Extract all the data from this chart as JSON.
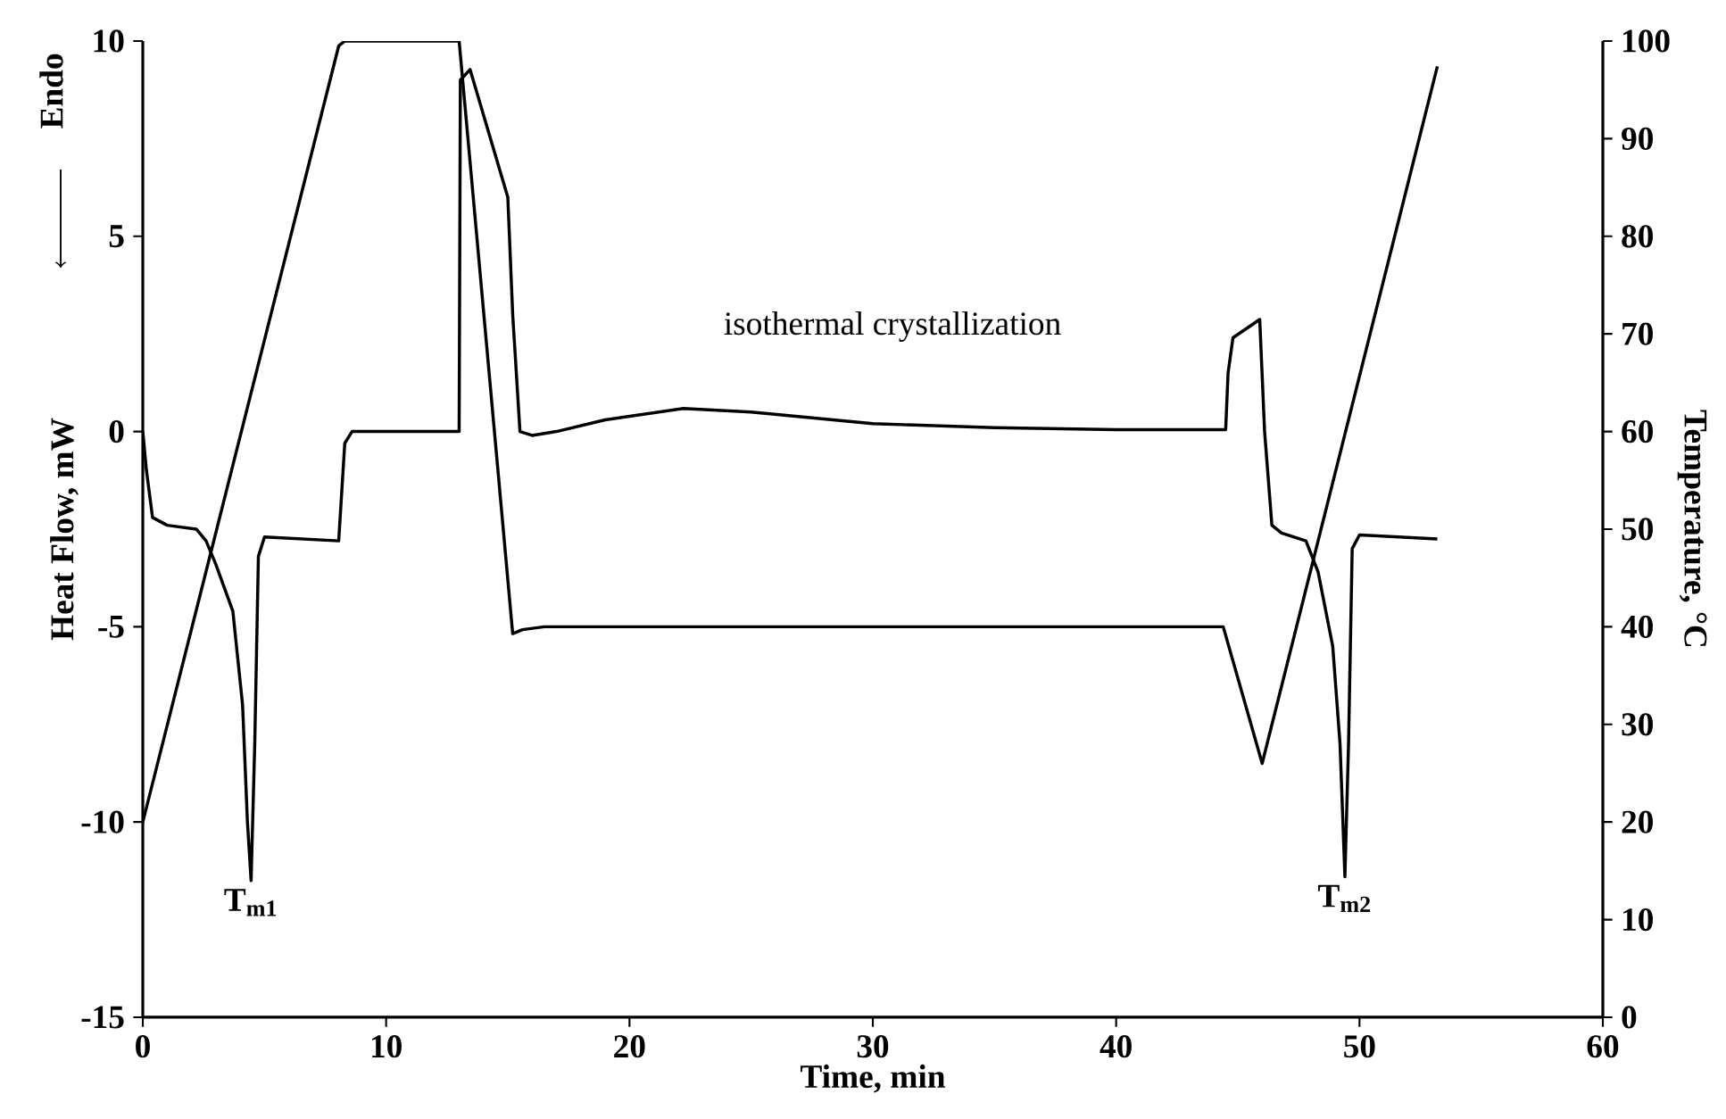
{
  "chart_data": {
    "type": "line",
    "xlabel": "Time, min",
    "ylabel": "Heat Flow, mW",
    "y2label": "Temperature, °C",
    "xlim": [
      0,
      60
    ],
    "xticks": [
      0,
      10,
      20,
      30,
      40,
      50,
      60
    ],
    "ylim": [
      -15,
      10
    ],
    "yticks": [
      -15,
      -10,
      -5,
      0,
      5,
      10
    ],
    "y2lim": [
      0,
      100
    ],
    "y2ticks": [
      0,
      10,
      20,
      30,
      40,
      50,
      60,
      70,
      80,
      90,
      100
    ],
    "annotations": [
      "Endo",
      "isothermal crystallization",
      {
        "text": "T$_{m1}$",
        "x": 4.45,
        "y": -11.5
      },
      {
        "text": "T$_{m2}$",
        "x": 49.4,
        "y": -11.4
      }
    ],
    "series": [
      {
        "color": "#000000",
        "x": [
          0,
          0.15,
          0.4,
          1.0,
          2.2,
          2.6,
          3.0,
          3.7,
          4.1,
          4.3,
          4.45,
          4.6,
          4.75,
          5.0,
          8.05,
          8.3,
          8.6,
          10,
          13.0,
          13.05,
          13.45,
          15.0,
          15.2,
          15.5,
          16.0,
          17,
          19,
          22.2,
          25,
          30,
          35,
          40,
          44.5,
          44.6,
          44.8,
          45.9,
          46.1,
          46.4,
          46.8,
          47.8,
          48.3,
          48.9,
          49.2,
          49.4,
          49.55,
          49.7,
          50.0,
          53.2
        ],
        "values": [
          0,
          -1,
          -2.2,
          -2.4,
          -2.5,
          -2.8,
          -3.4,
          -4.6,
          -7,
          -10,
          -11.5,
          -8,
          -3.2,
          -2.7,
          -2.8,
          -0.3,
          0,
          0,
          0,
          9.0,
          9.27,
          6.0,
          3,
          0,
          -0.1,
          0,
          0.3,
          0.59,
          0.5,
          0.2,
          0.1,
          0.05,
          0.05,
          1.5,
          2.4,
          2.87,
          0,
          -2.4,
          -2.6,
          -2.8,
          -3.6,
          -5.5,
          -8,
          -11.4,
          -8,
          -3,
          -2.65,
          -2.75
        ]
      },
      {
        "color": "#000000",
        "axis": "y2",
        "x": [
          0,
          8.05,
          8.3,
          13.0,
          15.2,
          15.6,
          16.5,
          44.4,
          46.0,
          53.2
        ],
        "values": [
          20,
          99.5,
          100,
          100,
          39.3,
          39.7,
          40,
          40,
          26,
          97.4
        ]
      }
    ]
  }
}
